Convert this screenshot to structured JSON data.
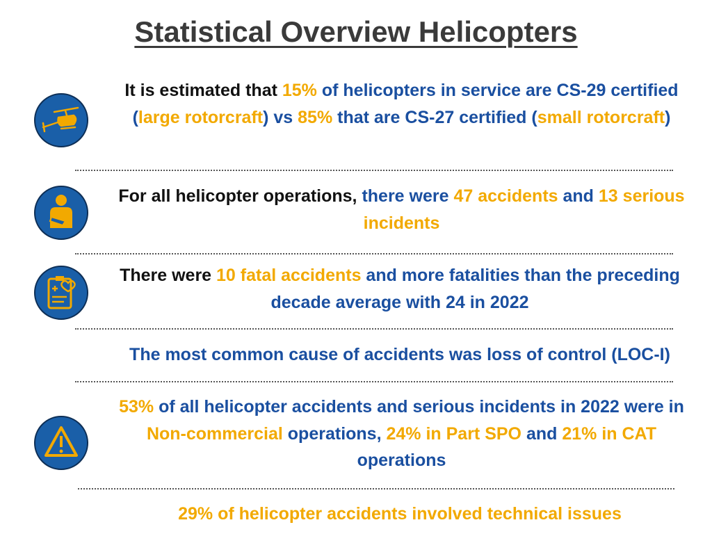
{
  "title": "Statistical Overview Helicopters",
  "items": [
    {
      "segments": [
        {
          "text": "It is estimated that ",
          "color": "#111111"
        },
        {
          "text": "15%",
          "color": "#f2a900"
        },
        {
          "text": " of helicopters in service are CS-29 certified (",
          "color": "#1a4fa0"
        },
        {
          "text": "large rotorcraft",
          "color": "#f2a900"
        },
        {
          "text": ") vs ",
          "color": "#1a4fa0"
        },
        {
          "text": "85%",
          "color": "#f2a900"
        },
        {
          "text": " that are CS-27 certified (",
          "color": "#1a4fa0"
        },
        {
          "text": "small rotorcraft",
          "color": "#f2a900"
        },
        {
          "text": ")",
          "color": "#1a4fa0"
        }
      ]
    },
    {
      "segments": [
        {
          "text": "For all helicopter operations, ",
          "color": "#111111"
        },
        {
          "text": "there were ",
          "color": "#1a4fa0"
        },
        {
          "text": "47 accidents",
          "color": "#f2a900"
        },
        {
          "text": " and ",
          "color": "#1a4fa0"
        },
        {
          "text": "13 serious incidents",
          "color": "#f2a900"
        }
      ]
    },
    {
      "segments": [
        {
          "text": "There were ",
          "color": "#111111"
        },
        {
          "text": "10 fatal accidents",
          "color": "#f2a900"
        },
        {
          "text": " and more fatalities than the preceding decade average with 24 in 2022",
          "color": "#1a4fa0"
        }
      ]
    },
    {
      "segments": [
        {
          "text": "The most common cause of accidents was loss of control (LOC-I)",
          "color": "#1a4fa0"
        }
      ]
    },
    {
      "segments": [
        {
          "text": "53%",
          "color": "#f2a900"
        },
        {
          "text": " of all helicopter accidents and serious incidents in 2022 were in ",
          "color": "#1a4fa0"
        },
        {
          "text": "Non-commercial",
          "color": "#f2a900"
        },
        {
          "text": " operations, ",
          "color": "#1a4fa0"
        },
        {
          "text": "24% in Part SPO",
          "color": "#f2a900"
        },
        {
          "text": " and ",
          "color": "#1a4fa0"
        },
        {
          "text": "21% in CAT",
          "color": "#f2a900"
        },
        {
          "text": " operations",
          "color": "#1a4fa0"
        }
      ]
    },
    {
      "segments": [
        {
          "text": "29% of helicopter accidents involved technical issues",
          "color": "#f2a900"
        }
      ]
    }
  ]
}
